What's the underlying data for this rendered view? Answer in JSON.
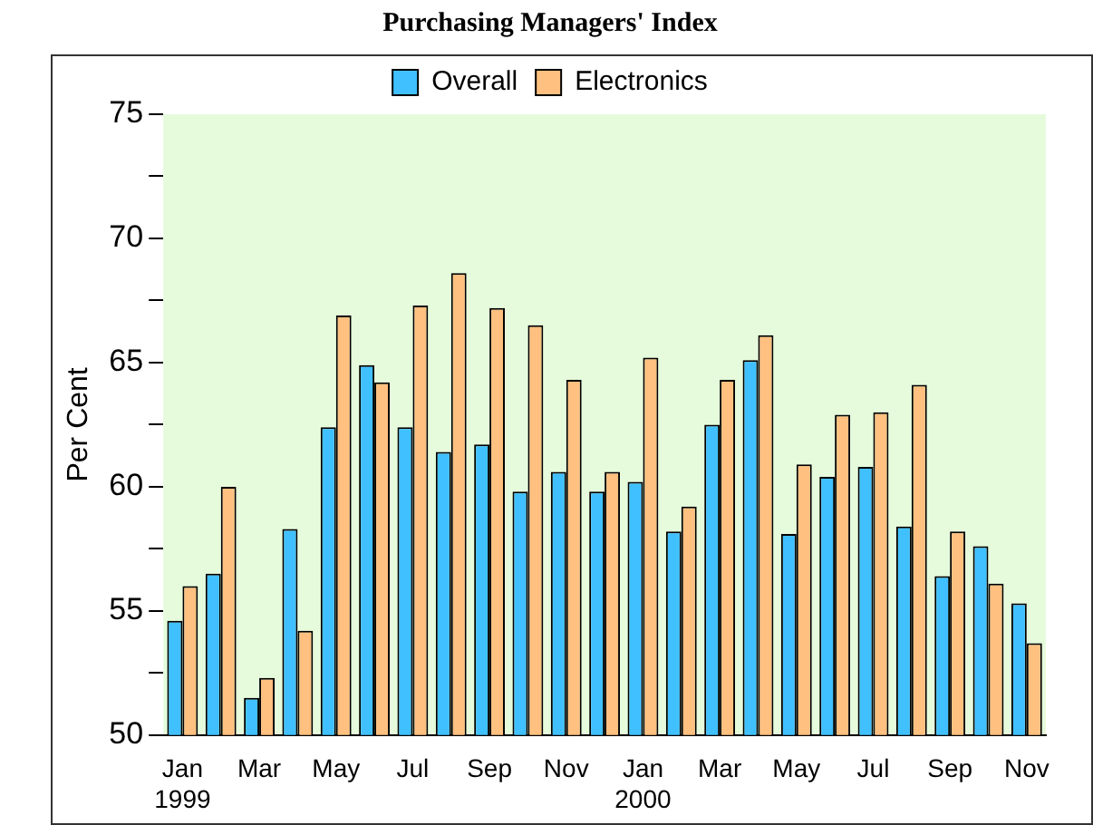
{
  "chart_data": {
    "type": "bar",
    "title": "Purchasing Managers' Index",
    "ylabel": "Per Cent",
    "categories": [
      "Jan\n1999",
      null,
      "Mar",
      null,
      "May",
      null,
      "Jul",
      null,
      "Sep",
      null,
      "Nov",
      null,
      "Jan\n2000",
      null,
      "Mar",
      null,
      "May",
      null,
      "Jul",
      null,
      "Sep",
      null,
      "Nov"
    ],
    "series": [
      {
        "name": "Overall",
        "color": "#40c0ff",
        "values": [
          54.6,
          56.5,
          51.5,
          58.3,
          62.4,
          64.9,
          62.4,
          61.4,
          61.7,
          59.8,
          60.6,
          59.8,
          60.2,
          58.2,
          62.5,
          65.1,
          58.1,
          60.4,
          60.8,
          58.4,
          56.4,
          57.6,
          55.3
        ]
      },
      {
        "name": "Electronics",
        "color": "#ffc080",
        "values": [
          56.0,
          60.0,
          52.3,
          54.2,
          66.9,
          64.2,
          67.3,
          68.6,
          67.2,
          66.5,
          64.3,
          60.6,
          65.2,
          59.2,
          64.3,
          66.1,
          60.9,
          62.9,
          63.0,
          64.1,
          58.2,
          56.1,
          53.7
        ]
      }
    ],
    "ylim": [
      50,
      75
    ],
    "yticks": [
      50,
      {
        "value": 52.5,
        "label": null
      },
      55,
      {
        "value": 57.5,
        "label": null
      },
      60,
      {
        "value": 62.5,
        "label": null
      },
      65,
      {
        "value": 67.5,
        "label": null
      },
      70,
      {
        "value": 72.5,
        "label": null
      },
      75
    ],
    "grid": false,
    "legend": "top"
  }
}
